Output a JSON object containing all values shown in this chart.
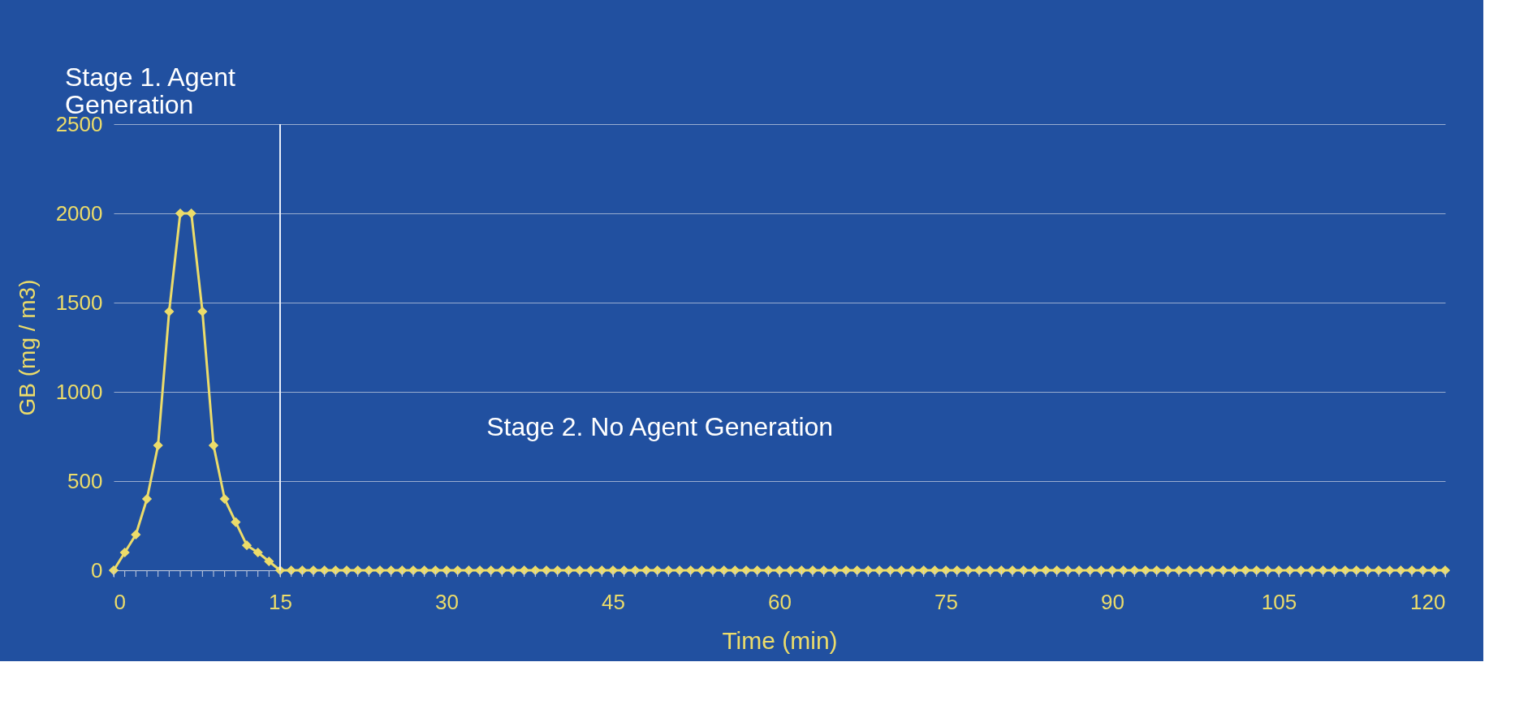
{
  "chart_data": {
    "type": "line",
    "xlabel": "Time (min)",
    "ylabel": "GB (mg / m3)",
    "x": [
      0,
      1,
      2,
      3,
      4,
      5,
      6,
      7,
      8,
      9,
      10,
      11,
      12,
      13,
      14,
      15,
      16,
      17,
      18,
      19,
      20,
      21,
      22,
      23,
      24,
      25,
      26,
      27,
      28,
      29,
      30,
      31,
      32,
      33,
      34,
      35,
      36,
      37,
      38,
      39,
      40,
      41,
      42,
      43,
      44,
      45,
      46,
      47,
      48,
      49,
      50,
      51,
      52,
      53,
      54,
      55,
      56,
      57,
      58,
      59,
      60,
      61,
      62,
      63,
      64,
      65,
      66,
      67,
      68,
      69,
      70,
      71,
      72,
      73,
      74,
      75,
      76,
      77,
      78,
      79,
      80,
      81,
      82,
      83,
      84,
      85,
      86,
      87,
      88,
      89,
      90,
      91,
      92,
      93,
      94,
      95,
      96,
      97,
      98,
      99,
      100,
      101,
      102,
      103,
      104,
      105,
      106,
      107,
      108,
      109,
      110,
      111,
      112,
      113,
      114,
      115,
      116,
      117,
      118,
      119,
      120
    ],
    "series": [
      {
        "color": "#ecdc6a",
        "values": [
          0,
          100,
          200,
          400,
          700,
          1450,
          2000,
          2000,
          1450,
          700,
          400,
          270,
          140,
          100,
          50,
          0,
          0,
          0,
          0,
          0,
          0,
          0,
          0,
          0,
          0,
          0,
          0,
          0,
          0,
          0,
          0,
          0,
          0,
          0,
          0,
          0,
          0,
          0,
          0,
          0,
          0,
          0,
          0,
          0,
          0,
          0,
          0,
          0,
          0,
          0,
          0,
          0,
          0,
          0,
          0,
          0,
          0,
          0,
          0,
          0,
          0,
          0,
          0,
          0,
          0,
          0,
          0,
          0,
          0,
          0,
          0,
          0,
          0,
          0,
          0,
          0,
          0,
          0,
          0,
          0,
          0,
          0,
          0,
          0,
          0,
          0,
          0,
          0,
          0,
          0,
          0,
          0,
          0,
          0,
          0,
          0,
          0,
          0,
          0,
          0,
          0,
          0,
          0,
          0,
          0,
          0,
          0,
          0,
          0,
          0,
          0,
          0,
          0,
          0,
          0,
          0,
          0,
          0,
          0,
          0,
          0
        ]
      }
    ],
    "marker": "diamond",
    "line_style": "solid",
    "xlim": [
      0,
      120
    ],
    "xticks": [
      0,
      15,
      30,
      45,
      60,
      75,
      90,
      105,
      120
    ],
    "ylim": [
      0,
      2500
    ],
    "yticks": [
      0,
      500,
      1000,
      1500,
      2000,
      2500
    ],
    "grid": "y",
    "ref_lines": [
      {
        "axis": "x",
        "value": 15,
        "color": "#e8eef8"
      }
    ],
    "annotations": [
      "Stage 1.  Agent\nGeneration",
      "Stage 2.  No Agent Generation"
    ]
  }
}
